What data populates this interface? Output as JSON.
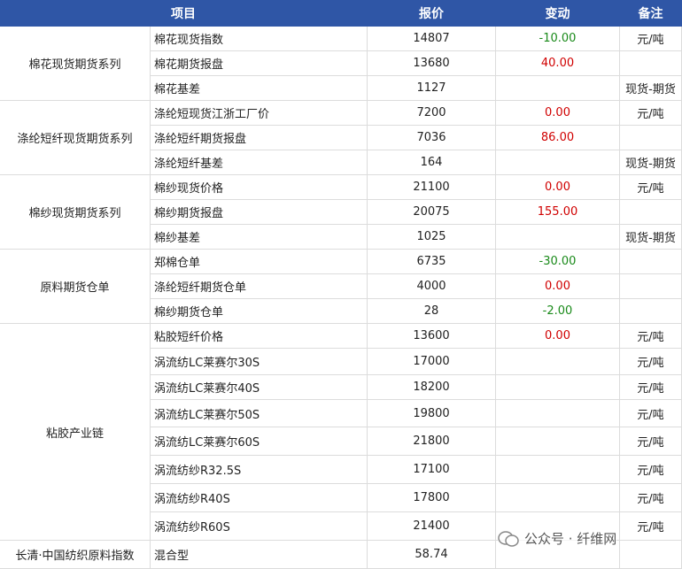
{
  "header": {
    "columns": [
      "项目",
      "报价",
      "变动",
      "备注"
    ]
  },
  "groups": [
    {
      "name": "棉花现货期货系列",
      "rows": [
        {
          "item": "棉花现货指数",
          "price": "14807",
          "change": "-10.00",
          "note": "元/吨"
        },
        {
          "item": "棉花期货报盘",
          "price": "13680",
          "change": "40.00"
        },
        {
          "item": "棉花基差",
          "price": "1127",
          "note": "现货-期货"
        }
      ]
    },
    {
      "name": "涤纶短纤现货期货系列",
      "rows": [
        {
          "item": "涤纶短现货江浙工厂价",
          "price": "7200",
          "change": "0.00",
          "note": "元/吨"
        },
        {
          "item": "涤纶短纤期货报盘",
          "price": "7036",
          "change": "86.00"
        },
        {
          "item": "涤纶短纤基差",
          "price": "164",
          "note": "现货-期货"
        }
      ]
    },
    {
      "name": "棉纱现货期货系列",
      "rows": [
        {
          "item": "棉纱现货价格",
          "price": "21100",
          "change": "0.00",
          "note": "元/吨"
        },
        {
          "item": "棉纱期货报盘",
          "price": "20075",
          "change": "155.00"
        },
        {
          "item": "棉纱基差",
          "price": "1025",
          "note": "现货-期货"
        }
      ]
    },
    {
      "name": "原料期货仓单",
      "rows": [
        {
          "item": "郑棉仓单",
          "price": "6735",
          "change": "-30.00"
        },
        {
          "item": "涤纶短纤期货仓单",
          "price": "4000",
          "change": "0.00"
        },
        {
          "item": "棉纱期货仓单",
          "price": "28",
          "change": "-2.00"
        }
      ]
    },
    {
      "name": "粘胶产业链",
      "rows": [
        {
          "item": "粘胶短纤价格",
          "price": "13600",
          "change": "0.00",
          "note": "元/吨"
        },
        {
          "item": "涡流纺LC莱赛尔30S",
          "price": "17000",
          "note": "元/吨"
        },
        {
          "item": "涡流纺LC莱赛尔40S",
          "price": "18200",
          "note": "元/吨"
        },
        {
          "item": "涡流纺LC莱赛尔50S",
          "price": "19800",
          "note": "元/吨"
        },
        {
          "item": "涡流纺LC莱赛尔60S",
          "price": "21800",
          "note": "元/吨"
        },
        {
          "item": "涡流纺纱R32.5S",
          "price": "17100",
          "note": "元/吨"
        },
        {
          "item": "涡流纺纱R40S",
          "price": "17800",
          "note": "元/吨"
        },
        {
          "item": "涡流纺纱R60S",
          "price": "21400",
          "note": "元/吨"
        }
      ]
    }
  ],
  "footer": {
    "name": "长清·中国纺织原料指数",
    "type": "混合型",
    "value": "58.74"
  },
  "watermark": "公众号 · 纤维网"
}
